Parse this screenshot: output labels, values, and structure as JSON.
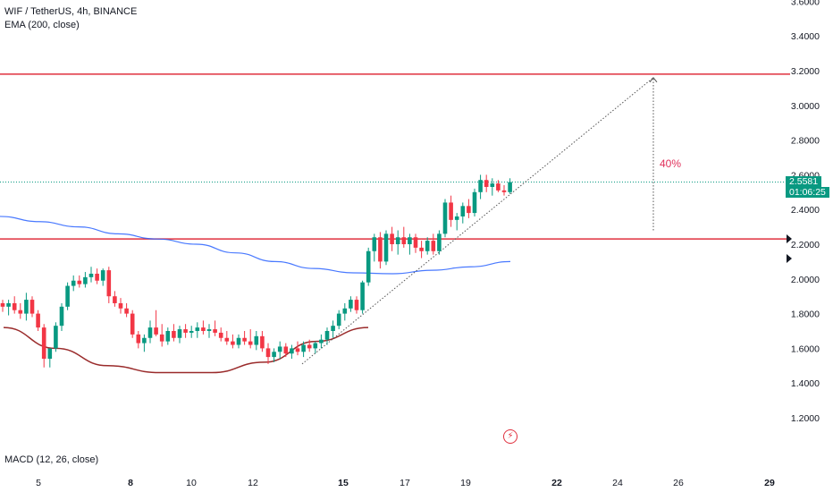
{
  "legend": {
    "symbol_line": "WIF / TetherUS, 4h, BINANCE",
    "ema_line": "EMA (200, close)",
    "macd_line": "MACD (12, 26, close)"
  },
  "last_price": {
    "value": "2.5581",
    "countdown": "01:06:25",
    "color": "#089981"
  },
  "annotation": {
    "percent_label": "40%",
    "color": "#e0305a"
  },
  "icons": {
    "event_marker": "lightning-bolt-icon"
  },
  "chart_data": {
    "type": "candlestick",
    "symbol": "WIF / TetherUS",
    "interval": "4h",
    "exchange": "BINANCE",
    "y_axis": {
      "ticks": [
        "1.2000",
        "1.4000",
        "1.6000",
        "1.8000",
        "2.0000",
        "2.2000",
        "2.4000",
        "2.6000",
        "2.8000",
        "3.0000",
        "3.2000",
        "3.4000",
        "3.6000"
      ],
      "range": [
        1.0,
        3.62
      ]
    },
    "x_axis": {
      "ticks": [
        {
          "label": "5",
          "bold": false
        },
        {
          "label": "8",
          "bold": true
        },
        {
          "label": "10",
          "bold": false
        },
        {
          "label": "12",
          "bold": false
        },
        {
          "label": "15",
          "bold": true
        },
        {
          "label": "17",
          "bold": false
        },
        {
          "label": "19",
          "bold": false
        },
        {
          "label": "22",
          "bold": true
        },
        {
          "label": "24",
          "bold": false
        },
        {
          "label": "26",
          "bold": false
        },
        {
          "label": "29",
          "bold": true
        }
      ]
    },
    "horizontal_lines": [
      {
        "price": 3.18,
        "color": "#e0303e"
      },
      {
        "price": 2.23,
        "color": "#e0303e"
      }
    ],
    "last_price_line": 2.5581,
    "ema200": [
      2.36,
      2.33,
      2.3,
      2.26,
      2.23,
      2.2,
      2.15,
      2.1,
      2.06,
      2.035,
      2.03,
      2.05,
      2.07,
      2.1
    ],
    "rounded_bottom": [
      1.72,
      1.6,
      1.5,
      1.46,
      1.46,
      1.52,
      1.64,
      1.72
    ],
    "trendline": {
      "from": 1.51,
      "to": 3.16
    },
    "measure": {
      "from": 2.28,
      "to": 3.16,
      "label": "40%"
    },
    "candles": [
      [
        1.86,
        1.88,
        1.81,
        1.84
      ],
      [
        1.84,
        1.88,
        1.79,
        1.86
      ],
      [
        1.86,
        1.9,
        1.8,
        1.82
      ],
      [
        1.82,
        1.86,
        1.77,
        1.8
      ],
      [
        1.8,
        1.92,
        1.76,
        1.88
      ],
      [
        1.88,
        1.9,
        1.78,
        1.8
      ],
      [
        1.8,
        1.82,
        1.7,
        1.72
      ],
      [
        1.72,
        1.74,
        1.49,
        1.54
      ],
      [
        1.54,
        1.6,
        1.49,
        1.6
      ],
      [
        1.6,
        1.75,
        1.58,
        1.73
      ],
      [
        1.73,
        1.86,
        1.7,
        1.84
      ],
      [
        1.84,
        1.98,
        1.82,
        1.96
      ],
      [
        1.96,
        2.02,
        1.93,
        1.99
      ],
      [
        1.99,
        2.02,
        1.95,
        1.97
      ],
      [
        1.97,
        2.04,
        1.95,
        2.01
      ],
      [
        2.01,
        2.07,
        1.98,
        2.03
      ],
      [
        2.03,
        2.06,
        1.97,
        1.99
      ],
      [
        1.99,
        2.06,
        1.96,
        2.05
      ],
      [
        2.05,
        2.07,
        1.86,
        1.9
      ],
      [
        1.9,
        1.93,
        1.84,
        1.86
      ],
      [
        1.86,
        1.89,
        1.8,
        1.83
      ],
      [
        1.83,
        1.86,
        1.78,
        1.8
      ],
      [
        1.8,
        1.82,
        1.66,
        1.68
      ],
      [
        1.68,
        1.7,
        1.6,
        1.63
      ],
      [
        1.63,
        1.68,
        1.58,
        1.66
      ],
      [
        1.66,
        1.76,
        1.63,
        1.72
      ],
      [
        1.72,
        1.82,
        1.67,
        1.68
      ],
      [
        1.68,
        1.74,
        1.61,
        1.64
      ],
      [
        1.64,
        1.72,
        1.62,
        1.7
      ],
      [
        1.7,
        1.74,
        1.64,
        1.66
      ],
      [
        1.66,
        1.73,
        1.63,
        1.71
      ],
      [
        1.71,
        1.74,
        1.66,
        1.69
      ],
      [
        1.69,
        1.73,
        1.66,
        1.7
      ],
      [
        1.7,
        1.75,
        1.66,
        1.72
      ],
      [
        1.72,
        1.76,
        1.68,
        1.7
      ],
      [
        1.7,
        1.74,
        1.66,
        1.71
      ],
      [
        1.71,
        1.76,
        1.67,
        1.69
      ],
      [
        1.69,
        1.72,
        1.64,
        1.66
      ],
      [
        1.66,
        1.7,
        1.62,
        1.64
      ],
      [
        1.64,
        1.68,
        1.6,
        1.62
      ],
      [
        1.62,
        1.68,
        1.6,
        1.66
      ],
      [
        1.66,
        1.7,
        1.62,
        1.64
      ],
      [
        1.64,
        1.71,
        1.6,
        1.62
      ],
      [
        1.62,
        1.7,
        1.59,
        1.67
      ],
      [
        1.67,
        1.7,
        1.58,
        1.6
      ],
      [
        1.6,
        1.63,
        1.51,
        1.55
      ],
      [
        1.55,
        1.6,
        1.52,
        1.58
      ],
      [
        1.58,
        1.64,
        1.54,
        1.61
      ],
      [
        1.61,
        1.63,
        1.55,
        1.57
      ],
      [
        1.57,
        1.62,
        1.54,
        1.6
      ],
      [
        1.6,
        1.64,
        1.56,
        1.58
      ],
      [
        1.58,
        1.64,
        1.55,
        1.62
      ],
      [
        1.62,
        1.65,
        1.58,
        1.6
      ],
      [
        1.6,
        1.64,
        1.57,
        1.63
      ],
      [
        1.63,
        1.68,
        1.6,
        1.65
      ],
      [
        1.65,
        1.72,
        1.62,
        1.7
      ],
      [
        1.7,
        1.76,
        1.66,
        1.73
      ],
      [
        1.73,
        1.82,
        1.71,
        1.8
      ],
      [
        1.8,
        1.86,
        1.76,
        1.83
      ],
      [
        1.83,
        1.9,
        1.81,
        1.88
      ],
      [
        1.88,
        1.9,
        1.8,
        1.82
      ],
      [
        1.82,
        1.99,
        1.8,
        1.98
      ],
      [
        1.98,
        2.18,
        1.96,
        2.16
      ],
      [
        2.16,
        2.26,
        2.1,
        2.24
      ],
      [
        2.24,
        2.27,
        2.06,
        2.1
      ],
      [
        2.1,
        2.28,
        2.08,
        2.26
      ],
      [
        2.26,
        2.3,
        2.16,
        2.2
      ],
      [
        2.2,
        2.28,
        2.14,
        2.24
      ],
      [
        2.24,
        2.3,
        2.18,
        2.2
      ],
      [
        2.2,
        2.26,
        2.14,
        2.24
      ],
      [
        2.24,
        2.26,
        2.15,
        2.18
      ],
      [
        2.18,
        2.22,
        2.12,
        2.16
      ],
      [
        2.16,
        2.24,
        2.14,
        2.22
      ],
      [
        2.22,
        2.26,
        2.14,
        2.16
      ],
      [
        2.16,
        2.28,
        2.14,
        2.26
      ],
      [
        2.26,
        2.46,
        2.24,
        2.44
      ],
      [
        2.44,
        2.48,
        2.3,
        2.34
      ],
      [
        2.34,
        2.38,
        2.28,
        2.36
      ],
      [
        2.36,
        2.44,
        2.32,
        2.42
      ],
      [
        2.42,
        2.46,
        2.35,
        2.38
      ],
      [
        2.38,
        2.52,
        2.36,
        2.5
      ],
      [
        2.5,
        2.6,
        2.46,
        2.57
      ],
      [
        2.57,
        2.6,
        2.5,
        2.53
      ],
      [
        2.53,
        2.58,
        2.48,
        2.55
      ],
      [
        2.55,
        2.57,
        2.5,
        2.51
      ],
      [
        2.51,
        2.54,
        2.48,
        2.5
      ],
      [
        2.5,
        2.58,
        2.49,
        2.558
      ]
    ]
  }
}
